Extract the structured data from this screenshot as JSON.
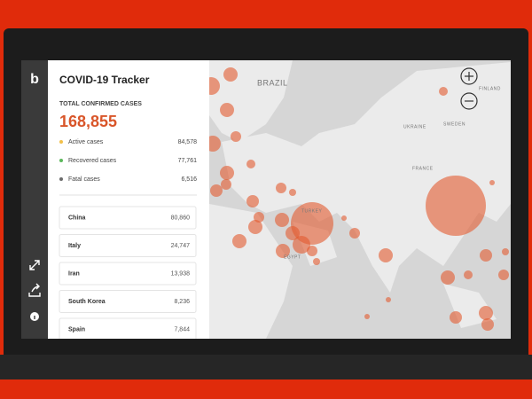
{
  "app": {
    "title": "COVID-19 Tracker"
  },
  "summary": {
    "label": "TOTAL CONFIRMED CASES",
    "total": "168,855",
    "breakdown": [
      {
        "label": "Active cases",
        "value": "84,578"
      },
      {
        "label": "Recovered cases",
        "value": "77,761"
      },
      {
        "label": "Fatal cases",
        "value": "6,516"
      }
    ]
  },
  "countries": [
    {
      "name": "China",
      "value": "80,860"
    },
    {
      "name": "Italy",
      "value": "24,747"
    },
    {
      "name": "Iran",
      "value": "13,938"
    },
    {
      "name": "South Korea",
      "value": "8,236"
    },
    {
      "name": "Spain",
      "value": "7,844"
    }
  ],
  "map": {
    "labels": [
      "BRAZIL",
      "FINLAND",
      "SWEDEN",
      "UKRAINE",
      "FRANCE",
      "TURKEY",
      "EGYPT"
    ]
  }
}
